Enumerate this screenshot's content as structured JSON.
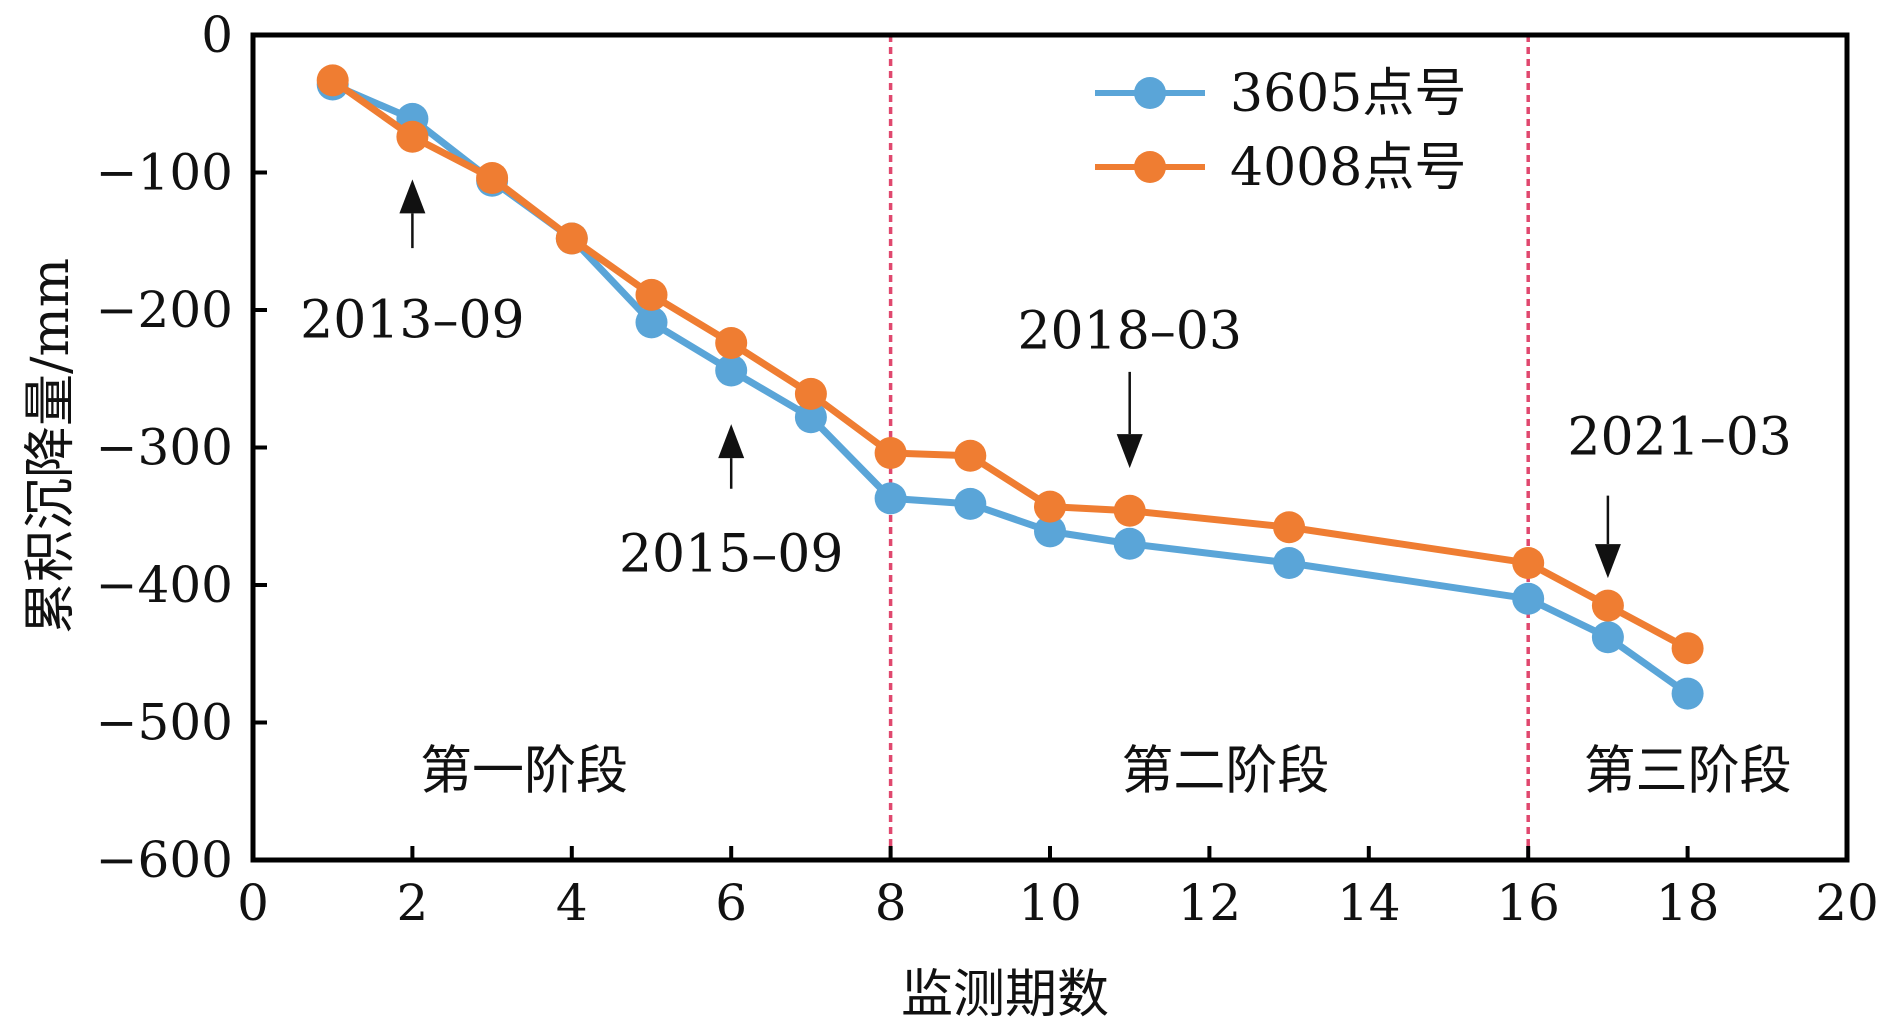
{
  "chart_data": {
    "type": "line",
    "title": "",
    "xlabel": "监测期数",
    "ylabel": "累积沉降量/mm",
    "xlim": [
      0,
      20
    ],
    "ylim": [
      -600,
      0
    ],
    "x_ticks": [
      0,
      2,
      4,
      6,
      8,
      10,
      12,
      14,
      16,
      18,
      20
    ],
    "y_ticks": [
      0,
      -100,
      -200,
      -300,
      -400,
      -500,
      -600
    ],
    "x_tick_labels": [
      "0",
      "2",
      "4",
      "6",
      "8",
      "10",
      "12",
      "14",
      "16",
      "18",
      "20"
    ],
    "y_tick_labels": [
      "0",
      "−100",
      "−200",
      "−300",
      "−400",
      "−500",
      "−600"
    ],
    "grid": false,
    "legend_position": "top-right",
    "x": [
      1,
      2,
      3,
      4,
      5,
      6,
      7,
      8,
      9,
      10,
      11,
      13,
      16,
      17,
      18
    ],
    "series": [
      {
        "name": "3605点号",
        "color": "#5aa5d8",
        "values": [
          -36,
          -61,
          -106,
          -148,
          -209,
          -244,
          -278,
          -337,
          -341,
          -361,
          -370,
          -384,
          -410,
          -438,
          -479
        ]
      },
      {
        "name": "4008点号",
        "color": "#ef7d32",
        "values": [
          -33,
          -74,
          -104,
          -148,
          -189,
          -224,
          -261,
          -304,
          -306,
          -343,
          -346,
          -358,
          -384,
          -415,
          -446
        ]
      }
    ],
    "phase_dividers": {
      "x": [
        8,
        16
      ],
      "color": "#e0486e",
      "style": "dotted"
    },
    "phase_labels": [
      {
        "text": "第一阶段",
        "x": 3.4,
        "y": -548
      },
      {
        "text": "第二阶段",
        "x": 12.2,
        "y": -548
      },
      {
        "text": "第三阶段",
        "x": 18.0,
        "y": -548
      }
    ],
    "annotations": [
      {
        "text": "2013–09",
        "arrow_x": 2,
        "arrow_direction": "up",
        "arrow_from_y": -155,
        "arrow_to_y": -105,
        "label_x": 2,
        "label_y": -220
      },
      {
        "text": "2015–09",
        "arrow_x": 6,
        "arrow_direction": "up",
        "arrow_from_y": -330,
        "arrow_to_y": -283,
        "label_x": 6,
        "label_y": -390
      },
      {
        "text": "2018–03",
        "arrow_x": 11,
        "arrow_direction": "down",
        "arrow_from_y": -245,
        "arrow_to_y": -315,
        "label_x": 11,
        "label_y": -228
      },
      {
        "text": "2021–03",
        "arrow_x": 17,
        "arrow_direction": "down",
        "arrow_from_y": -335,
        "arrow_to_y": -395,
        "label_x": 17.9,
        "label_y": -305
      }
    ]
  }
}
